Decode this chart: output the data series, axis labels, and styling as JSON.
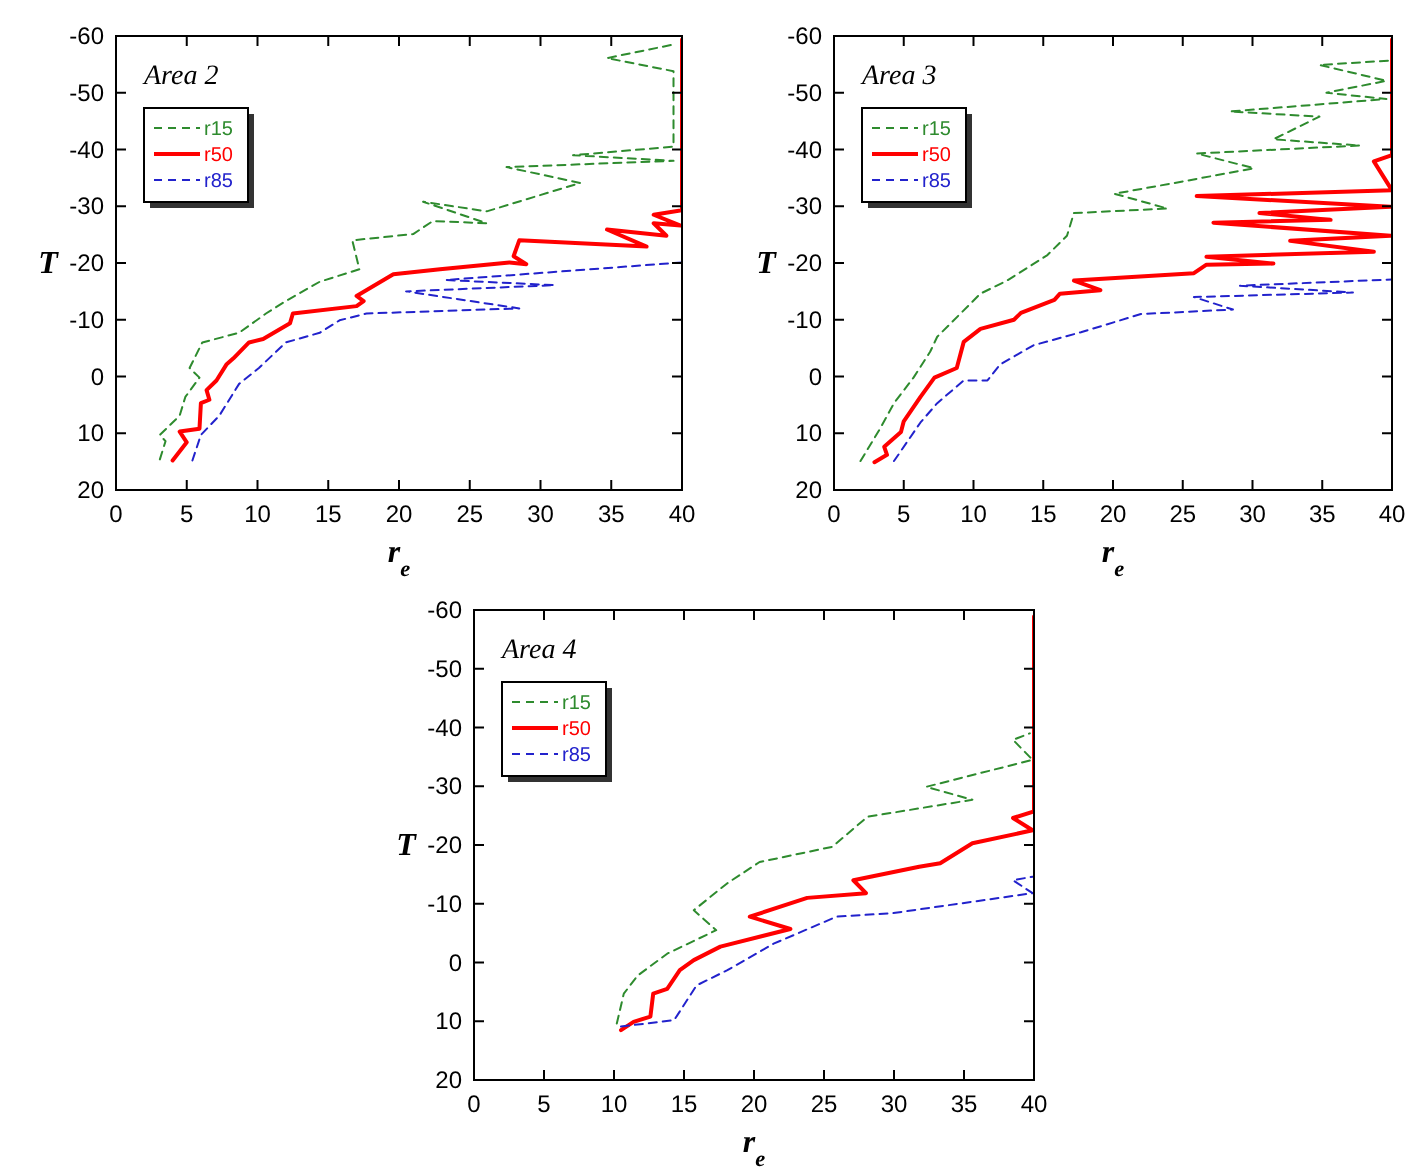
{
  "chart_data": [
    {
      "type": "line",
      "title": "Area 2",
      "xlabel": "r$_{e}$",
      "ylabel": "T",
      "xlim": [
        0,
        40
      ],
      "ylim": [
        20,
        -60
      ],
      "xticks": [
        0,
        5,
        10,
        15,
        20,
        25,
        30,
        35,
        40
      ],
      "yticks": [
        -60,
        -50,
        -40,
        -30,
        -20,
        -10,
        0,
        10,
        20
      ],
      "legend": "top left",
      "series": [
        {
          "name": "r15",
          "color": "#2e8b2e",
          "line_style": "dashed",
          "x": [
            3.1,
            3.5,
            3.1,
            4.5,
            4.9,
            5.9,
            5.2,
            6.1,
            8.7,
            10.6,
            12,
            14.4,
            17.2,
            16.7,
            21,
            22.4,
            26.2,
            21.7,
            26.2,
            32.8,
            27.6,
            39.4,
            32.3,
            39.4,
            39.4,
            34.7,
            39.4
          ],
          "values": [
            14.6,
            11.4,
            10.3,
            6.9,
            3.6,
            0.2,
            -1.5,
            -6,
            -7.7,
            -11.1,
            -13.3,
            -16.7,
            -18.9,
            -24,
            -25.1,
            -27.4,
            -27,
            -30.8,
            -29.1,
            -34.1,
            -36.9,
            -38,
            -39,
            -40.5,
            -53.8,
            -56.1,
            -58.5
          ]
        },
        {
          "name": "r50",
          "color": "#ff0000",
          "line_style": "solid",
          "x": [
            4,
            5,
            4.5,
            5.9,
            6,
            6.6,
            6.4,
            7.1,
            7.8,
            8.3,
            9.4,
            10.4,
            12.3,
            12.5,
            17,
            17.5,
            17,
            19.6,
            22.9,
            27.8,
            29,
            28.1,
            28.5,
            37.5,
            34.7,
            38.9,
            38,
            39.9,
            38,
            40,
            40
          ],
          "values": [
            14.8,
            11.6,
            9.7,
            9.2,
            4.7,
            4.1,
            2.4,
            0.7,
            -2.1,
            -3.2,
            -6,
            -6.6,
            -9.4,
            -11.1,
            -12.4,
            -13.3,
            -14.2,
            -18,
            -18.9,
            -20.1,
            -19.8,
            -21.2,
            -24,
            -22.9,
            -25.9,
            -24.8,
            -27,
            -26.6,
            -28.5,
            -29.3,
            -59.4
          ]
        },
        {
          "name": "r85",
          "color": "#2222cc",
          "line_style": "dashed",
          "x": [
            5.4,
            6,
            7.3,
            8.7,
            10.1,
            12,
            14.4,
            15.8,
            17.7,
            28.5,
            20.5,
            31,
            23.3,
            40
          ],
          "values": [
            14.8,
            10.3,
            6.9,
            1.3,
            -1.5,
            -6,
            -7.7,
            -9.9,
            -11.1,
            -12,
            -15,
            -16.1,
            -17,
            -20.1
          ]
        }
      ]
    },
    {
      "type": "line",
      "title": "Area 3",
      "xlabel": "r$_{e}$",
      "ylabel": "T",
      "xlim": [
        0,
        40
      ],
      "ylim": [
        20,
        -60
      ],
      "xticks": [
        0,
        5,
        10,
        15,
        20,
        25,
        30,
        35,
        40
      ],
      "yticks": [
        -60,
        -50,
        -40,
        -30,
        -20,
        -10,
        0,
        10,
        20
      ],
      "legend": "top left",
      "series": [
        {
          "name": "r15",
          "color": "#2e8b2e",
          "line_style": "dashed",
          "x": [
            1.9,
            3.3,
            4.3,
            5.7,
            6.9,
            7.4,
            10.5,
            12.4,
            15.3,
            16.7,
            17.2,
            23.9,
            20.1,
            25.3,
            30.1,
            26,
            37.7,
            31.5,
            34.8,
            28.4,
            39.6,
            35.3,
            39.6,
            34.8,
            40
          ],
          "values": [
            14.9,
            9.2,
            4.7,
            0.2,
            -4.4,
            -7,
            -14.6,
            -16.9,
            -21.4,
            -24.8,
            -28.8,
            -29.6,
            -32.2,
            -34.5,
            -36.7,
            -39.3,
            -40.7,
            -41.8,
            -45.8,
            -46.7,
            -48.9,
            -50,
            -52.1,
            -54.9,
            -55.7
          ]
        },
        {
          "name": "r50",
          "color": "#ff0000",
          "line_style": "solid",
          "x": [
            2.9,
            3.8,
            3.6,
            4.8,
            5,
            6.2,
            7.2,
            8.8,
            9.3,
            10.5,
            12.9,
            13.4,
            15.8,
            16.2,
            19.1,
            17.2,
            25.8,
            26.7,
            31.5,
            26.7,
            38.7,
            32.7,
            39.9,
            27.2,
            35.6,
            30.5,
            39.9,
            26,
            40,
            38.7,
            40,
            40
          ],
          "values": [
            15.1,
            13.8,
            12.4,
            9.8,
            7.9,
            3.6,
            0.2,
            -1.5,
            -6.1,
            -8.4,
            -10,
            -11.2,
            -13.5,
            -14.6,
            -15.2,
            -16.9,
            -18.2,
            -19.7,
            -19.9,
            -21.1,
            -22,
            -23.9,
            -24.8,
            -27.1,
            -27.6,
            -28.8,
            -29.9,
            -31.8,
            -32.8,
            -37.9,
            -39,
            -59.4
          ]
        },
        {
          "name": "r85",
          "color": "#2222cc",
          "line_style": "dashed",
          "x": [
            4.3,
            6.2,
            7.4,
            9.3,
            11,
            11.9,
            14.3,
            17.7,
            22,
            28.6,
            25.8,
            37.2,
            29.1,
            40
          ],
          "values": [
            14.9,
            8.1,
            4.7,
            0.7,
            0.7,
            -2.1,
            -5.5,
            -7.8,
            -11,
            -11.8,
            -14,
            -14.8,
            -16,
            -17.1
          ]
        }
      ]
    },
    {
      "type": "line",
      "title": "Area 4",
      "xlabel": "r$_{e}$",
      "ylabel": "T",
      "xlim": [
        0,
        40
      ],
      "ylim": [
        20,
        -60
      ],
      "xticks": [
        0,
        5,
        10,
        15,
        20,
        25,
        30,
        35,
        40
      ],
      "yticks": [
        -60,
        -50,
        -40,
        -30,
        -20,
        -10,
        0,
        10,
        20
      ],
      "legend": "top left",
      "series": [
        {
          "name": "r15",
          "color": "#2e8b2e",
          "line_style": "dashed",
          "x": [
            10.2,
            10.7,
            11.7,
            13.8,
            17.3,
            15.7,
            18.1,
            20.4,
            25.6,
            28.1,
            35.6,
            32.3,
            39.9,
            38.5,
            39.7
          ],
          "values": [
            10.4,
            5.3,
            2.2,
            -1.5,
            -5.5,
            -8.9,
            -13.5,
            -17.1,
            -19.7,
            -24.8,
            -27.7,
            -29.9,
            -34.5,
            -37.9,
            -39
          ]
        },
        {
          "name": "r50",
          "color": "#ff0000",
          "line_style": "solid",
          "x": [
            10.5,
            11.4,
            12.6,
            12.8,
            13.8,
            14.7,
            15.7,
            17.6,
            22.6,
            19.7,
            23.8,
            28,
            27.1,
            31.8,
            33.3,
            35.6,
            39.9,
            38.5,
            40,
            40
          ],
          "values": [
            11.5,
            10.1,
            9.2,
            5.3,
            4.5,
            1.3,
            -0.4,
            -2.7,
            -5.7,
            -7.8,
            -11,
            -11.8,
            -14,
            -16.3,
            -16.9,
            -20.3,
            -22.5,
            -24.6,
            -25.7,
            -58.9
          ]
        },
        {
          "name": "r85",
          "color": "#2222cc",
          "line_style": "dashed",
          "x": [
            10.5,
            14.3,
            15.9,
            18.1,
            21.4,
            25.9,
            29.9,
            39.9,
            38.5,
            39.9
          ],
          "values": [
            10.9,
            9.8,
            3.9,
            1.3,
            -3.2,
            -7.8,
            -8.4,
            -11.8,
            -14,
            -14.6
          ]
        }
      ]
    }
  ]
}
